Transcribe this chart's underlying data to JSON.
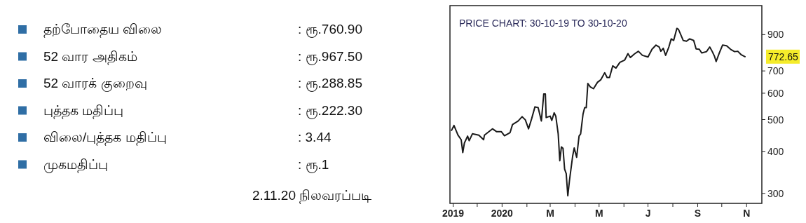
{
  "chart_data": [
    {
      "type": "other",
      "color": "#2f6ea5",
      "categories": [
        "தற்போதைய விலை",
        "52 வார அதிகம்",
        "52 வாரக் குறைவு",
        "புத்தக மதிப்பு",
        "விலை/புத்தக மதிப்பு",
        "முகமதிப்பு"
      ],
      "value_labels": [
        ": ரூ.760.90",
        ": ரூ.967.50",
        ": ரூ.288.85",
        ": ரூ.222.30",
        ": 3.44",
        ": ரூ.1"
      ],
      "annotations": [
        "2.11.20 நிலவரப்படி"
      ]
    },
    {
      "type": "line",
      "title": "PRICE CHART: 30-10-19 TO 30-10-20",
      "color": "#1a1a1a",
      "log": "y",
      "xlim": [
        "2019-10-28",
        "2020-11-20"
      ],
      "ylim": [
        280,
        1100
      ],
      "yticks": [
        300,
        400,
        500,
        600,
        700,
        900
      ],
      "xticks": [
        {
          "value": "2019-11-01",
          "label": "2019"
        },
        {
          "value": "2019-12-01",
          "label": null
        },
        {
          "value": "2020-01-01",
          "label": "2020"
        },
        {
          "value": "2020-02-01",
          "label": null
        },
        {
          "value": "2020-03-01",
          "label": "M"
        },
        {
          "value": "2020-04-01",
          "label": null
        },
        {
          "value": "2020-05-01",
          "label": "M"
        },
        {
          "value": "2020-06-01",
          "label": null
        },
        {
          "value": "2020-07-01",
          "label": "J"
        },
        {
          "value": "2020-08-01",
          "label": null
        },
        {
          "value": "2020-09-01",
          "label": "S"
        },
        {
          "value": "2020-10-01",
          "label": null
        },
        {
          "value": "2020-11-01",
          "label": "N"
        }
      ],
      "x": [
        "2019-10-30",
        "2019-11-02",
        "2019-11-07",
        "2019-11-11",
        "2019-11-13",
        "2019-11-15",
        "2019-11-19",
        "2019-11-21",
        "2019-11-25",
        "2019-12-03",
        "2019-12-09",
        "2019-12-10",
        "2019-12-20",
        "2019-12-25",
        "2019-12-31",
        "2020-01-04",
        "2020-01-11",
        "2020-01-14",
        "2020-01-21",
        "2020-01-26",
        "2020-01-30",
        "2020-02-03",
        "2020-02-07",
        "2020-02-11",
        "2020-02-15",
        "2020-02-19",
        "2020-02-22",
        "2020-02-24",
        "2020-02-25",
        "2020-03-01",
        "2020-03-03",
        "2020-03-06",
        "2020-03-08",
        "2020-03-11",
        "2020-03-13",
        "2020-03-15",
        "2020-03-17",
        "2020-03-19",
        "2020-03-21",
        "2020-03-23",
        "2020-03-25",
        "2020-03-29",
        "2020-03-31",
        "2020-04-03",
        "2020-04-06",
        "2020-04-08",
        "2020-04-11",
        "2020-04-13",
        "2020-04-15",
        "2020-04-17",
        "2020-04-20",
        "2020-04-24",
        "2020-04-29",
        "2020-05-03",
        "2020-05-08",
        "2020-05-11",
        "2020-05-14",
        "2020-05-18",
        "2020-05-22",
        "2020-05-27",
        "2020-06-02",
        "2020-06-06",
        "2020-06-09",
        "2020-06-14",
        "2020-06-19",
        "2020-06-24",
        "2020-07-01",
        "2020-07-06",
        "2020-07-11",
        "2020-07-15",
        "2020-07-17",
        "2020-07-20",
        "2020-07-23",
        "2020-07-27",
        "2020-07-30",
        "2020-08-02",
        "2020-08-06",
        "2020-08-08",
        "2020-08-10",
        "2020-08-14",
        "2020-08-18",
        "2020-08-22",
        "2020-08-27",
        "2020-08-30",
        "2020-09-03",
        "2020-09-06",
        "2020-09-12",
        "2020-09-16",
        "2020-09-19",
        "2020-09-22",
        "2020-09-24",
        "2020-09-28",
        "2020-10-02",
        "2020-10-07",
        "2020-10-12",
        "2020-10-17",
        "2020-10-21",
        "2020-10-25",
        "2020-10-30"
      ],
      "values": [
        464,
        480,
        449,
        435,
        398,
        425,
        446,
        432,
        453,
        449,
        435,
        449,
        469,
        460,
        460,
        447,
        457,
        483,
        495,
        510,
        499,
        469,
        504,
        546,
        543,
        495,
        597,
        597,
        507,
        512,
        497,
        524,
        512,
        453,
        376,
        414,
        410,
        355,
        344,
        295,
        327,
        388,
        411,
        385,
        446,
        453,
        520,
        543,
        543,
        642,
        627,
        619,
        647,
        658,
        691,
        669,
        669,
        725,
        714,
        743,
        755,
        789,
        768,
        787,
        802,
        780,
        771,
        813,
        837,
        826,
        802,
        819,
        780,
        826,
        874,
        864,
        940,
        933,
        910,
        864,
        860,
        874,
        864,
        815,
        813,
        793,
        800,
        826,
        802,
        774,
        747,
        793,
        837,
        833,
        813,
        800,
        802,
        784,
        772.65
      ],
      "annotations": [
        "772.65"
      ]
    }
  ]
}
